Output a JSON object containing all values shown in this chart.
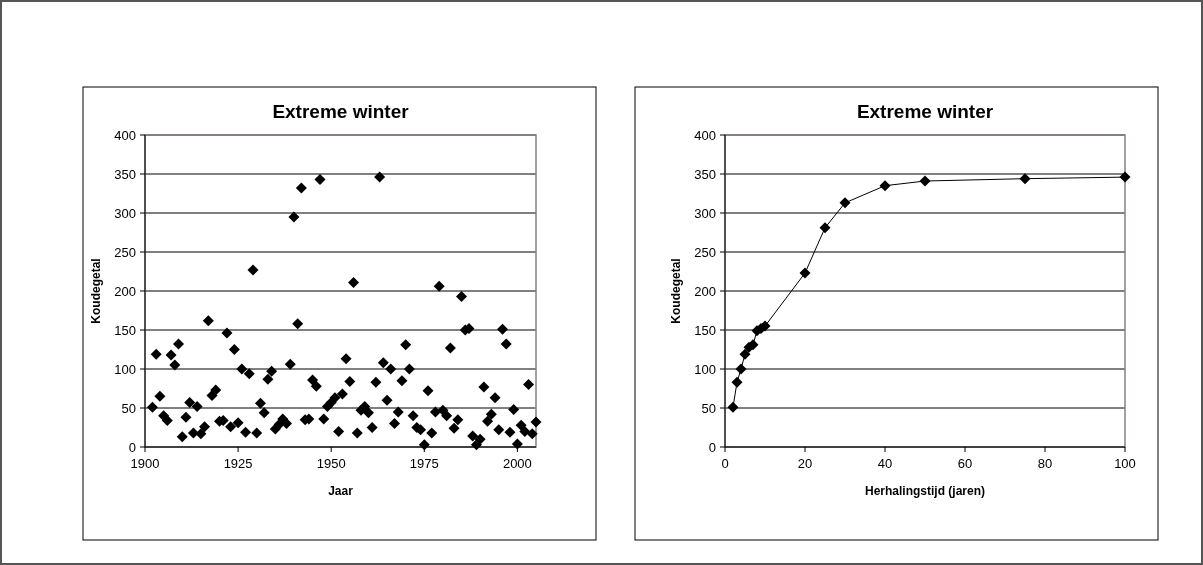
{
  "chart_data": [
    {
      "type": "scatter",
      "title": "Extreme winter",
      "xlabel": "Jaar",
      "ylabel": "Koudegetal",
      "xlim": [
        1900,
        2005
      ],
      "xticks": [
        1900,
        1925,
        1950,
        1975,
        2000
      ],
      "ylim": [
        0,
        400
      ],
      "yticks": [
        0,
        50,
        100,
        150,
        200,
        250,
        300,
        350,
        400
      ],
      "grid": "y",
      "marker": "diamond",
      "series": [
        {
          "color": "#000000",
          "x": [
            1902,
            1903,
            1904,
            1905,
            1906,
            1907,
            1908,
            1909,
            1910,
            1911,
            1912,
            1913,
            1914,
            1915,
            1916,
            1917,
            1918,
            1919,
            1920,
            1921,
            1922,
            1923,
            1924,
            1925,
            1926,
            1927,
            1928,
            1929,
            1930,
            1931,
            1932,
            1933,
            1934,
            1935,
            1936,
            1937,
            1938,
            1939,
            1940,
            1941,
            1942,
            1943,
            1944,
            1945,
            1946,
            1947,
            1948,
            1949,
            1950,
            1951,
            1952,
            1953,
            1954,
            1955,
            1956,
            1957,
            1958,
            1959,
            1960,
            1961,
            1962,
            1963,
            1964,
            1965,
            1966,
            1967,
            1968,
            1969,
            1970,
            1971,
            1972,
            1973,
            1974,
            1975,
            1976,
            1977,
            1978,
            1979,
            1980,
            1981,
            1982,
            1983,
            1984,
            1985,
            1986,
            1987,
            1988,
            1989,
            1990,
            1991,
            1992,
            1993,
            1994,
            1995,
            1996,
            1997,
            1998,
            1999,
            2000,
            2001,
            2002,
            2003,
            2004,
            2005
          ],
          "values": [
            51,
            119,
            65,
            40,
            34,
            118,
            105,
            132,
            13,
            38,
            57,
            18,
            52,
            17,
            26,
            162,
            66,
            73,
            33,
            34,
            146,
            26,
            125,
            31,
            100,
            19,
            94,
            227,
            18,
            56,
            44,
            87,
            97,
            23,
            29,
            36,
            30,
            106,
            295,
            158,
            332,
            35,
            36,
            86,
            78,
            343,
            36,
            52,
            57,
            63,
            20,
            68,
            113,
            84,
            211,
            18,
            47,
            52,
            44,
            25,
            83,
            346,
            108,
            60,
            100,
            30,
            45,
            85,
            131,
            100,
            40,
            25,
            22,
            3,
            72,
            18,
            45,
            206,
            47,
            40,
            127,
            24,
            35,
            193,
            150,
            152,
            14,
            3,
            10,
            77,
            33,
            42,
            63,
            22,
            151,
            132,
            19,
            48,
            4,
            28,
            20,
            80,
            17,
            32
          ]
        }
      ]
    },
    {
      "type": "line",
      "title": "Extreme winter",
      "xlabel": "Herhalingstijd (jaren)",
      "ylabel": "Koudegetal",
      "xlim": [
        0,
        100
      ],
      "xticks": [
        0,
        20,
        40,
        60,
        80,
        100
      ],
      "ylim": [
        0,
        400
      ],
      "yticks": [
        0,
        50,
        100,
        150,
        200,
        250,
        300,
        350,
        400
      ],
      "grid": "y",
      "marker": "diamond",
      "line_style": "solid",
      "series": [
        {
          "color": "#000000",
          "x": [
            2,
            3,
            4,
            5,
            6,
            7,
            8,
            9,
            10,
            20,
            25,
            30,
            40,
            50,
            75,
            100
          ],
          "values": [
            51,
            83,
            100,
            119,
            128,
            131,
            149,
            152,
            155,
            223,
            281,
            313,
            335,
            341,
            344,
            346
          ]
        }
      ]
    }
  ]
}
